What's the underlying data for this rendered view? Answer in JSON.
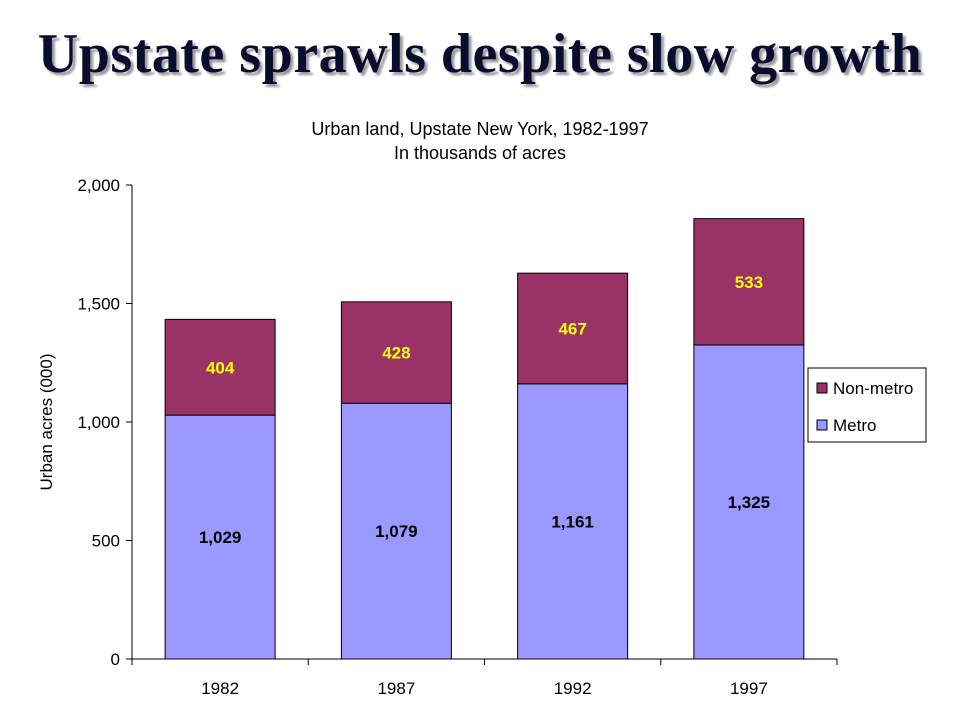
{
  "slide": {
    "title": "Upstate sprawls despite slow growth"
  },
  "colors": {
    "metro": "#9999ff",
    "non_metro": "#993366",
    "non_metro_label": "#ffff00",
    "axis": "#000000"
  },
  "chart_data": {
    "type": "bar",
    "stacked": true,
    "title_lines": [
      "Urban land, Upstate New York, 1982-1997",
      "In thousands of acres"
    ],
    "xlabel": "",
    "ylabel": "Urban acres (000)",
    "categories": [
      "1982",
      "1987",
      "1992",
      "1997"
    ],
    "ylim": [
      0,
      2000
    ],
    "yticks": [
      0,
      500,
      1000,
      1500,
      2000
    ],
    "ytick_labels": [
      "0",
      "500",
      "1,000",
      "1,500",
      "2,000"
    ],
    "series": [
      {
        "name": "Metro",
        "values": [
          1029,
          1079,
          1161,
          1325
        ],
        "labels": [
          "1,029",
          "1,079",
          "1,161",
          "1,325"
        ]
      },
      {
        "name": "Non-metro",
        "values": [
          404,
          428,
          467,
          533
        ],
        "labels": [
          "404",
          "428",
          "467",
          "533"
        ]
      }
    ],
    "legend": {
      "position": "right",
      "order": [
        "Non-metro",
        "Metro"
      ]
    },
    "grid": false
  }
}
